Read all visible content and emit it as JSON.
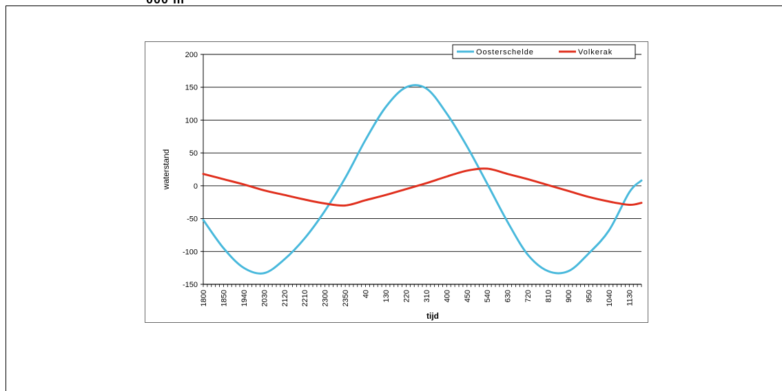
{
  "page": {
    "top_fragment": "000 m"
  },
  "colors": {
    "oosterschelde": "#49b9dc",
    "volkerak": "#e0301e",
    "grid": "#000000",
    "zero_line": "#777777"
  },
  "chart_data": {
    "type": "line",
    "title": "",
    "xlabel": "tijd",
    "ylabel": "waterstand",
    "ylim": [
      -150,
      200
    ],
    "yticks": [
      -150,
      -100,
      -50,
      0,
      50,
      100,
      150,
      200
    ],
    "grid": true,
    "legend_position": "top-right",
    "xtick_labels": [
      "1800",
      "1850",
      "1940",
      "2030",
      "2120",
      "2210",
      "2300",
      "2350",
      "40",
      "130",
      "220",
      "310",
      "400",
      "450",
      "540",
      "630",
      "720",
      "810",
      "900",
      "950",
      "1040",
      "1130"
    ],
    "x_positions": [
      0,
      1,
      2,
      3,
      4,
      5,
      6,
      7,
      8,
      9,
      10,
      11,
      12,
      13,
      14,
      15,
      16,
      17,
      18,
      19,
      20,
      21,
      21.6
    ],
    "series": [
      {
        "name": "Oosterschelde",
        "color": "#49b9dc",
        "values": [
          -52,
          -95,
          -125,
          -133,
          -112,
          -80,
          -38,
          12,
          70,
          120,
          150,
          148,
          110,
          60,
          3,
          -55,
          -105,
          -130,
          -130,
          -103,
          -68,
          -10,
          8
        ]
      },
      {
        "name": "Volkerak",
        "color": "#e0301e",
        "values": [
          18,
          10,
          2,
          -7,
          -14,
          -21,
          -27,
          -30,
          -22,
          -14,
          -5,
          4,
          14,
          23,
          26,
          18,
          10,
          1,
          -8,
          -17,
          -24,
          -29,
          -26
        ]
      }
    ]
  }
}
